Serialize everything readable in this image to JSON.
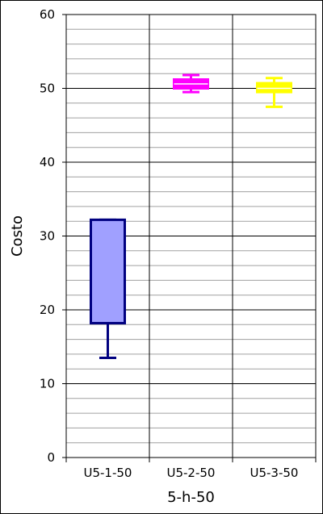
{
  "chart_data": {
    "type": "box",
    "title": "",
    "xlabel": "5-h-50",
    "ylabel": "Costo",
    "ylim": [
      0,
      60
    ],
    "y_ticks": [
      0,
      10,
      20,
      30,
      40,
      50,
      60
    ],
    "y_tick_labels": [
      "0",
      "10",
      "20",
      "30",
      "40",
      "50",
      "60"
    ],
    "minor_step": 2,
    "grid": true,
    "categories": [
      "U5-1-50",
      "U5-2-50",
      "U5-3-50"
    ],
    "series": [
      {
        "category": "U5-1-50",
        "min": 13.5,
        "q1": 18.2,
        "median": 18.2,
        "q3": 32.2,
        "max": 32.2,
        "stroke": "#000080",
        "fill": "#a0a0ff"
      },
      {
        "category": "U5-2-50",
        "min": 49.5,
        "q1": 50.0,
        "median": 50.6,
        "q3": 51.2,
        "max": 51.8,
        "stroke": "#ff00ff",
        "fill": "#ff00ff"
      },
      {
        "category": "U5-3-50",
        "min": 47.5,
        "q1": 49.5,
        "median": 50.0,
        "q3": 50.7,
        "max": 51.4,
        "stroke": "#ffff00",
        "fill": "#ffff00"
      }
    ]
  }
}
